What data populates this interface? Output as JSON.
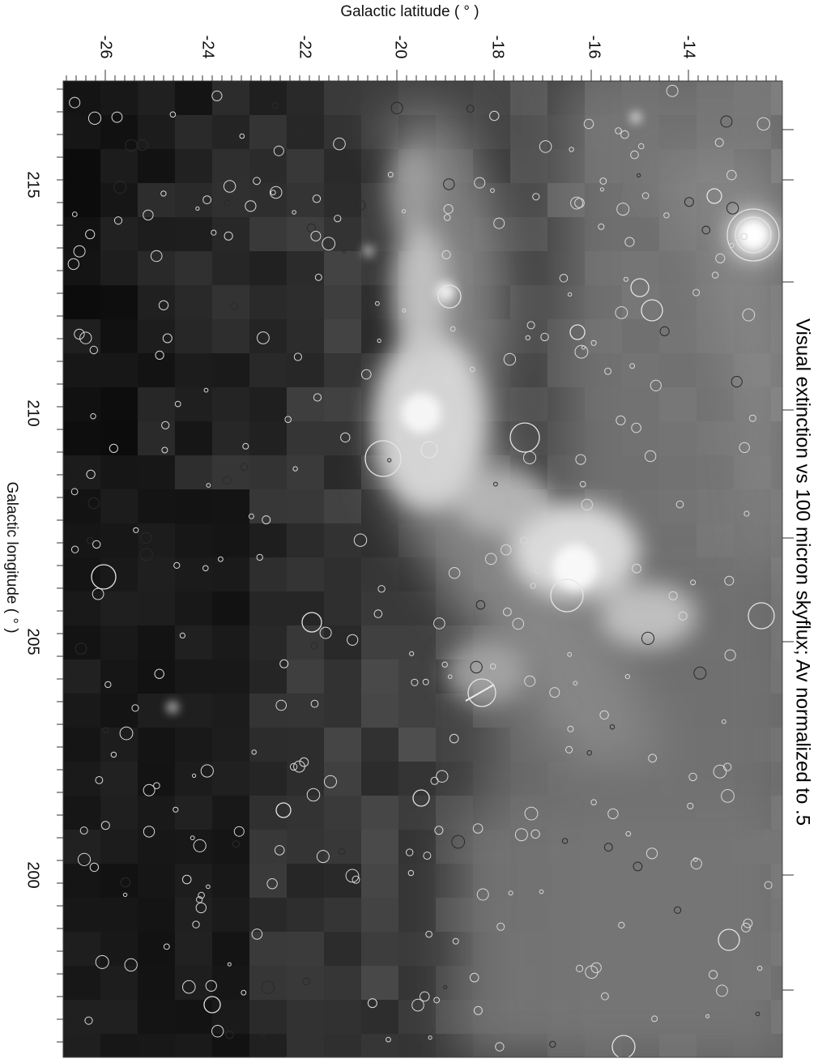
{
  "figure": {
    "title": "Visual extinction vs 100 micron skyflux; Av normalized to .5",
    "top_axis": {
      "label": "Galactic latitude ( ° )",
      "ticks": [
        "-26",
        "-24",
        "-22",
        "-20",
        "-18",
        "-16",
        "-14"
      ]
    },
    "left_axis": {
      "label": "Galactic longitude ( ° )",
      "ticks": [
        "215",
        "210",
        "205",
        "200"
      ]
    },
    "colors": {
      "background_sky": "#1a1a1a",
      "emission_core": "#f2f2f2",
      "circle_marker": "#e8e8e8"
    }
  }
}
